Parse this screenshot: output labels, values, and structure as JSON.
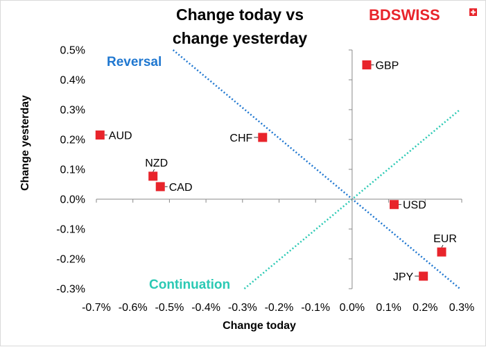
{
  "chart_data": {
    "type": "scatter",
    "title_lines": [
      "Change today vs",
      "change yesterday"
    ],
    "xlabel": "Change today",
    "ylabel": "Change yesterday",
    "xlim": [
      -0.7,
      0.3
    ],
    "ylim": [
      -0.3,
      0.5
    ],
    "x_ticks": [
      {
        "value": -0.7,
        "label": "-0.7%"
      },
      {
        "value": -0.6,
        "label": "-0.6%"
      },
      {
        "value": -0.5,
        "label": "-0.5%"
      },
      {
        "value": -0.4,
        "label": "-0.4%"
      },
      {
        "value": -0.3,
        "label": "-0.3%"
      },
      {
        "value": -0.2,
        "label": "-0.2%"
      },
      {
        "value": -0.1,
        "label": "-0.1%"
      },
      {
        "value": 0.0,
        "label": "0.0%"
      },
      {
        "value": 0.1,
        "label": "0.1%"
      },
      {
        "value": 0.2,
        "label": "0.2%"
      },
      {
        "value": 0.3,
        "label": "0.3%"
      }
    ],
    "y_ticks": [
      {
        "value": 0.5,
        "label": "0.5%"
      },
      {
        "value": 0.4,
        "label": "0.4%"
      },
      {
        "value": 0.3,
        "label": "0.3%"
      },
      {
        "value": 0.2,
        "label": "0.2%"
      },
      {
        "value": 0.1,
        "label": "0.1%"
      },
      {
        "value": 0.0,
        "label": "0.0%"
      },
      {
        "value": -0.1,
        "label": "-0.1%"
      },
      {
        "value": -0.2,
        "label": "-0.2%"
      },
      {
        "value": -0.3,
        "label": "-0.3%"
      }
    ],
    "points": [
      {
        "label": "GBP",
        "x": 0.04,
        "y": 0.45,
        "label_side": "right"
      },
      {
        "label": "AUD",
        "x": -0.69,
        "y": 0.215,
        "label_side": "right"
      },
      {
        "label": "CHF",
        "x": -0.245,
        "y": 0.207,
        "label_side": "left"
      },
      {
        "label": "NZD",
        "x": -0.545,
        "y": 0.077,
        "label_side": "above"
      },
      {
        "label": "CAD",
        "x": -0.525,
        "y": 0.042,
        "label_side": "right"
      },
      {
        "label": "USD",
        "x": 0.115,
        "y": -0.018,
        "label_side": "right"
      },
      {
        "label": "EUR",
        "x": 0.245,
        "y": -0.177,
        "label_side": "above"
      },
      {
        "label": "JPY",
        "x": 0.195,
        "y": -0.258,
        "label_side": "left"
      }
    ],
    "reference_lines": [
      {
        "name": "Reversal",
        "color": "#1f77d0",
        "x1": -0.49,
        "y1": 0.5,
        "x2": 0.295,
        "y2": -0.3
      },
      {
        "name": "Continuation",
        "color": "#2bc9b4",
        "x1": -0.295,
        "y1": -0.3,
        "x2": 0.295,
        "y2": 0.3
      }
    ],
    "marker_color": "#e8242b",
    "axis_color": "#888888",
    "grid": false,
    "legend": "none"
  },
  "logo": {
    "part1": "BD",
    "part2": "SWISS",
    "part1_color": "#e8242b",
    "part2_color": "#e8242b",
    "badge_color": "#e8242b"
  }
}
